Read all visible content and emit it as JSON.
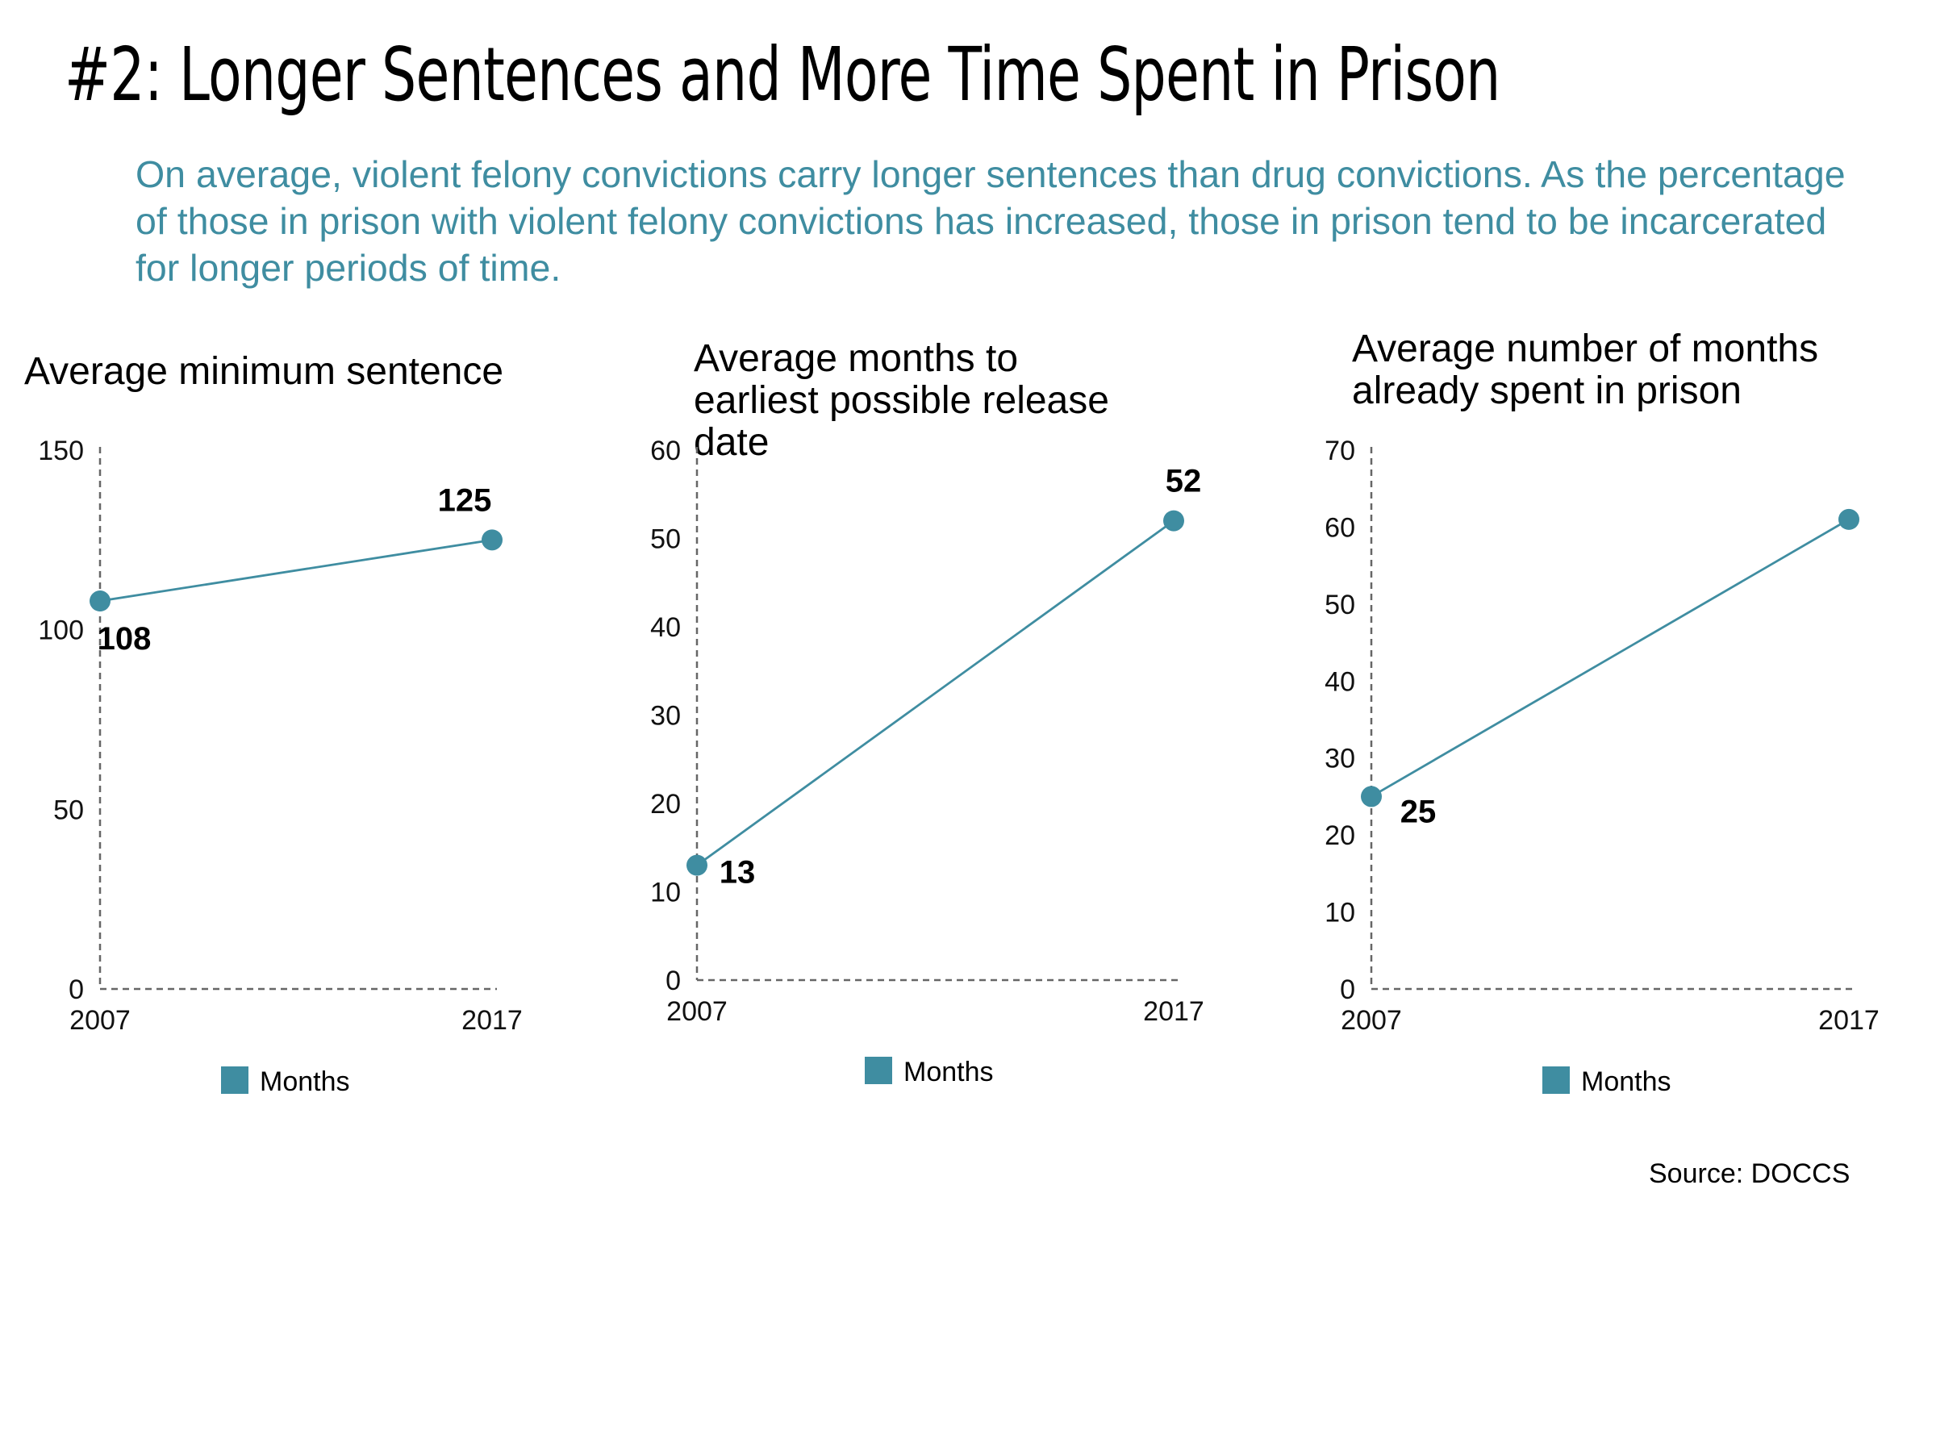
{
  "headline": "#2: Longer Sentences and More Time Spent in Prison",
  "intro": "On average, violent felony convictions carry longer sentences than drug convictions. As the percentage of those in prison with violent felony convictions has increased, those in prison tend to be incarcerated for longer periods of time.",
  "source": "Source: DOCCS",
  "colors": {
    "series": "#3f8da1",
    "axis": "#666666",
    "text": "#000000",
    "intro": "#3f8da1"
  },
  "chart_data": [
    {
      "type": "line",
      "title": "Average minimum sentence",
      "categories": [
        "2007",
        "2017"
      ],
      "series": [
        {
          "name": "Months",
          "values": [
            108,
            125
          ]
        }
      ],
      "point_labels": [
        "108",
        "125"
      ],
      "yticks": [
        0,
        50,
        100,
        150
      ],
      "ylim": [
        0,
        150
      ],
      "legend": "bottom",
      "grid": false
    },
    {
      "type": "line",
      "title": "Average months to earliest possible release date",
      "categories": [
        "2007",
        "2017"
      ],
      "series": [
        {
          "name": "Months",
          "values": [
            13,
            52
          ]
        }
      ],
      "point_labels": [
        "13",
        "52"
      ],
      "yticks": [
        0,
        10,
        20,
        30,
        40,
        50,
        60
      ],
      "ylim": [
        0,
        60
      ],
      "legend": "bottom",
      "grid": false
    },
    {
      "type": "line",
      "title": "Average number of months already spent in prison",
      "categories": [
        "2007",
        "2017"
      ],
      "series": [
        {
          "name": "Months",
          "values": [
            25,
            61
          ]
        }
      ],
      "point_labels": [
        "25",
        ""
      ],
      "yticks": [
        0,
        10,
        20,
        30,
        40,
        50,
        60,
        70
      ],
      "ylim": [
        0,
        70
      ],
      "legend": "bottom",
      "grid": false
    }
  ]
}
